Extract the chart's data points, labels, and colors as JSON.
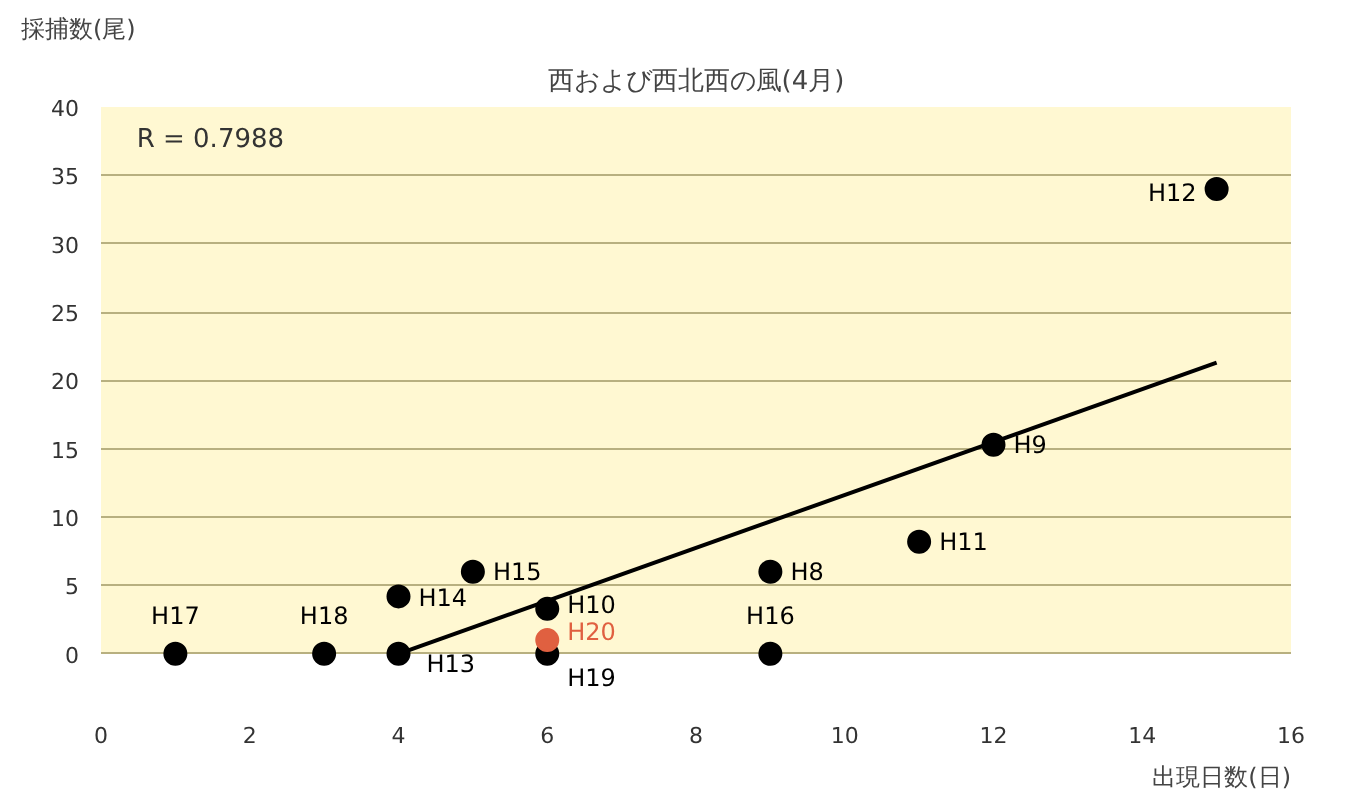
{
  "chart_data": {
    "type": "scatter",
    "title": "西および西北西の風(4月)",
    "xlabel": "出現日数(日)",
    "ylabel": "採捕数(尾)",
    "xlim": [
      0,
      16
    ],
    "xticks": [
      0,
      2,
      4,
      6,
      8,
      10,
      12,
      14,
      16
    ],
    "ylim": [
      0,
      40
    ],
    "yticks": [
      0,
      5,
      10,
      15,
      20,
      25,
      30,
      35,
      40
    ],
    "grid": "y",
    "series": [
      {
        "marker": "circle",
        "x": [
          9,
          12,
          6,
          11,
          15,
          4,
          4,
          5,
          9,
          1,
          3,
          6,
          6
        ],
        "values": [
          6,
          15.3,
          3.3,
          8.2,
          34,
          0,
          4.2,
          6,
          0,
          0,
          0,
          0,
          1
        ],
        "colors": [
          "#000000",
          "#000000",
          "#000000",
          "#000000",
          "#000000",
          "#000000",
          "#000000",
          "#000000",
          "#000000",
          "#000000",
          "#000000",
          "#000000",
          "#e06040"
        ]
      },
      {
        "type": "line",
        "x": [
          4,
          15
        ],
        "values": [
          0,
          21.3
        ],
        "color": "#000000"
      }
    ],
    "annotations": [
      "R = 0.7988",
      {
        "text": "H8",
        "x": 9,
        "y": 6
      },
      {
        "text": "H9",
        "x": 12,
        "y": 15.3
      },
      {
        "text": "H10",
        "x": 6,
        "y": 3.3
      },
      {
        "text": "H11",
        "x": 11,
        "y": 8.2
      },
      {
        "text": "H12",
        "x": 15,
        "y": 34
      },
      {
        "text": "H13",
        "x": 4,
        "y": 0
      },
      {
        "text": "H14",
        "x": 4,
        "y": 4.2
      },
      {
        "text": "H15",
        "x": 5,
        "y": 6
      },
      {
        "text": "H16",
        "x": 9,
        "y": 0
      },
      {
        "text": "H17",
        "x": 1,
        "y": 0
      },
      {
        "text": "H18",
        "x": 3,
        "y": 0
      },
      {
        "text": "H19",
        "x": 6,
        "y": 0
      },
      {
        "text": "H20",
        "x": 6,
        "y": 1
      }
    ]
  }
}
